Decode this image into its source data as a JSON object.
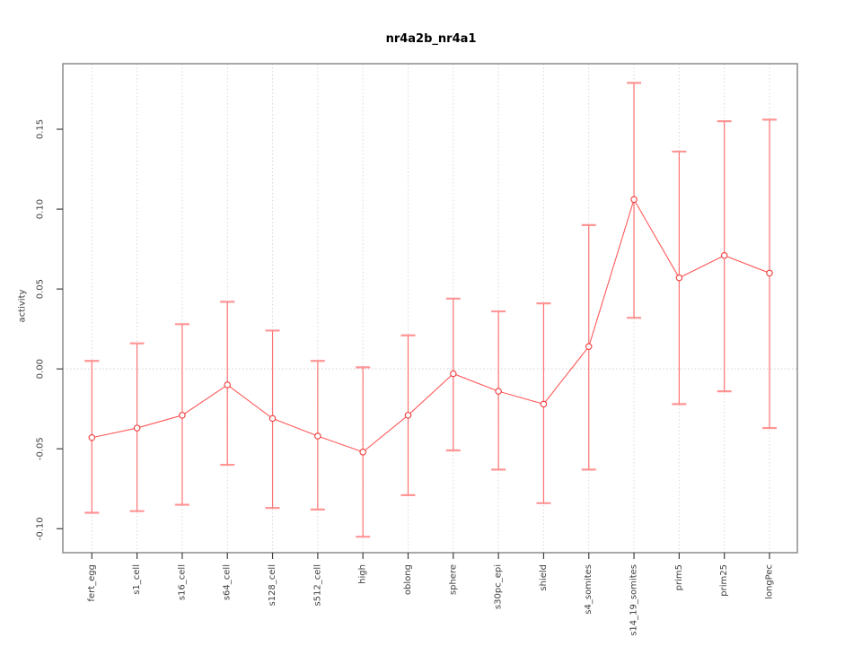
{
  "page": {
    "window_title": "nr4a2b_nr4a1"
  },
  "chart_data": {
    "type": "line",
    "title": "nr4a2b_nr4a1",
    "xlabel": "",
    "ylabel": "activity",
    "legend_position": "none",
    "grid": {
      "vertical_dotted": true,
      "zero_line_dotted": true
    },
    "categories": [
      "fert_egg",
      "s1_cell",
      "s16_cell",
      "s64_cell",
      "s128_cell",
      "s512_cell",
      "high",
      "oblong",
      "sphere",
      "s30pc_epi",
      "shield",
      "s4_somites",
      "s14_19_somites",
      "prim5",
      "prim25",
      "longPec"
    ],
    "series": [
      {
        "name": "nr4a2b_nr4a1",
        "marker": "open-circle",
        "values": [
          -0.043,
          -0.037,
          -0.029,
          -0.01,
          -0.031,
          -0.042,
          -0.052,
          -0.029,
          -0.003,
          -0.014,
          -0.022,
          0.014,
          0.106,
          0.057,
          0.071,
          0.06
        ],
        "error_upper": [
          0.005,
          0.016,
          0.028,
          0.042,
          0.024,
          0.005,
          0.001,
          0.021,
          0.044,
          0.036,
          0.041,
          0.09,
          0.179,
          0.136,
          0.155,
          0.156
        ],
        "error_lower": [
          -0.09,
          -0.089,
          -0.085,
          -0.06,
          -0.087,
          -0.088,
          -0.105,
          -0.079,
          -0.051,
          -0.063,
          -0.084,
          -0.063,
          0.032,
          -0.022,
          -0.014,
          -0.037
        ]
      }
    ],
    "ylim": [
      -0.115,
      0.191
    ],
    "yticks": [
      -0.1,
      -0.05,
      0.0,
      0.05,
      0.1,
      0.15
    ],
    "ytick_labels": [
      "-0.10",
      "-0.05",
      "0.00",
      "0.05",
      "0.10",
      "0.15"
    ],
    "colors": {
      "series_line": "#ff4747",
      "error_bar": "#ff5252",
      "error_cap": "#ff8a8a",
      "marker_stroke": "#f03b3b",
      "grid": "#d9d9d9",
      "zero_line": "#cfcfcf",
      "border": "#8a8a8a",
      "tick": "#404040",
      "text": "#404040"
    }
  }
}
